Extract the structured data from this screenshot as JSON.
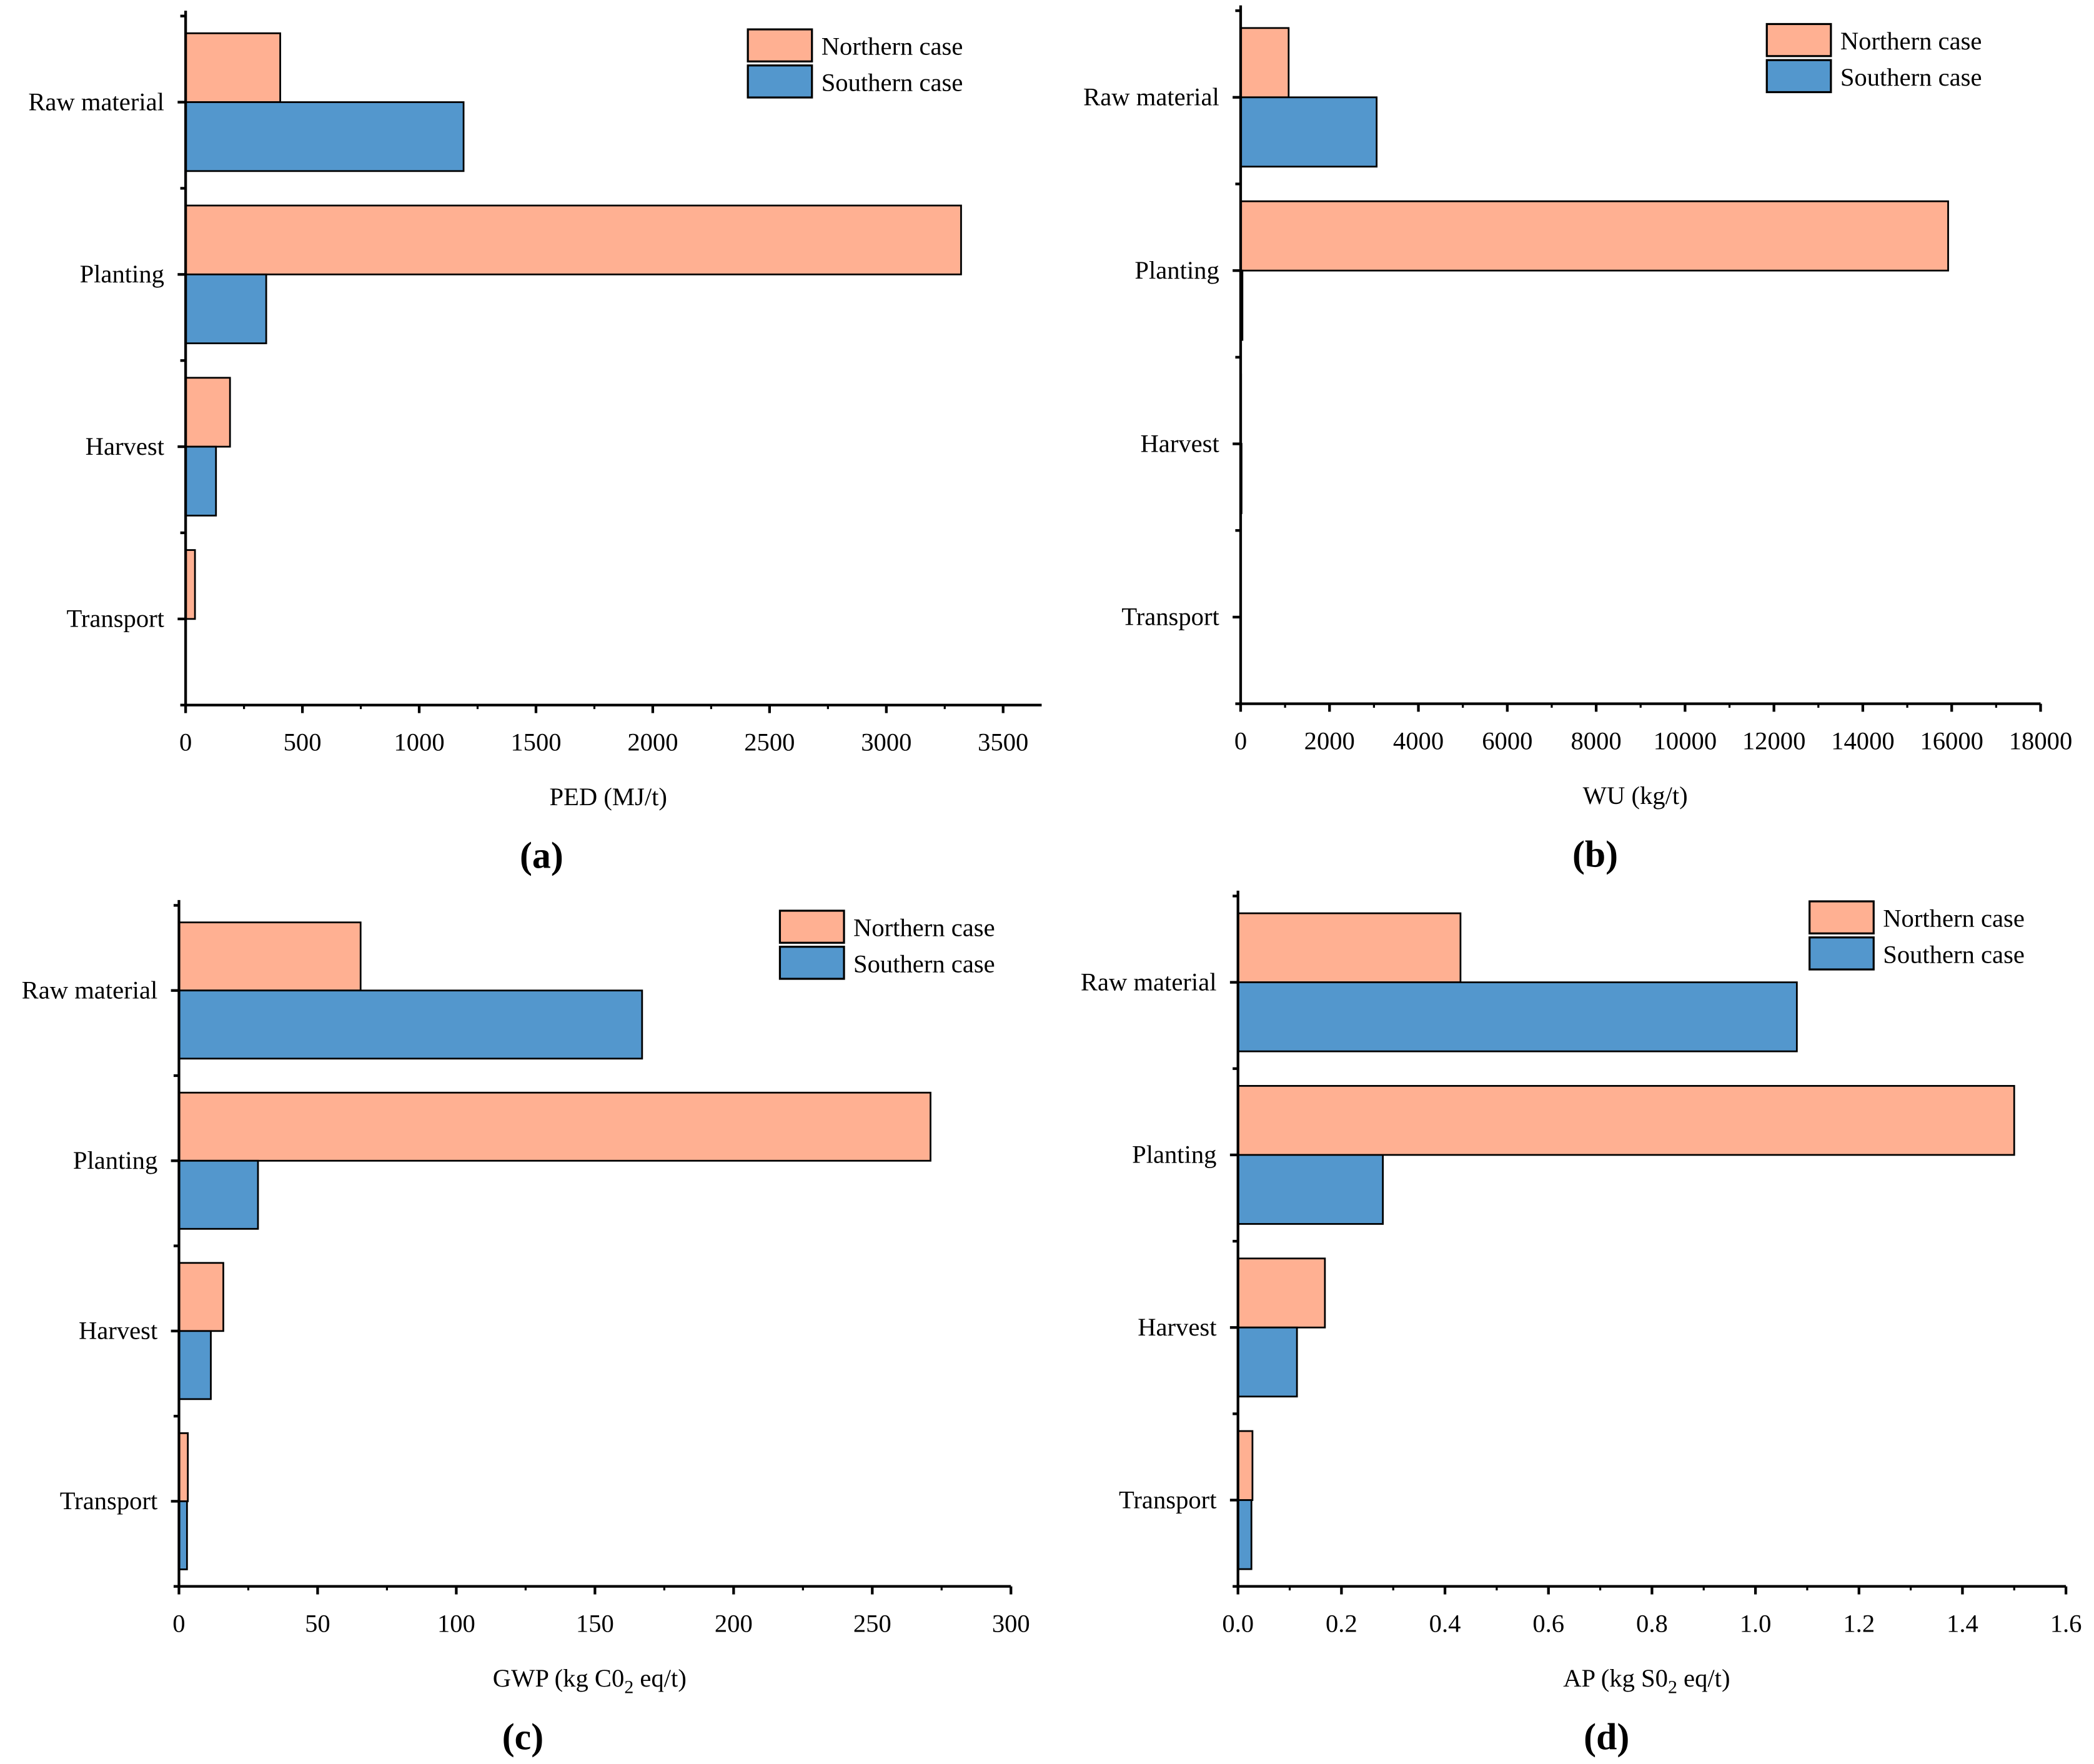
{
  "colors": {
    "northern": "#FFB092",
    "southern": "#5397CD",
    "axis": "#000000"
  },
  "chart_data": [
    {
      "type": "bar",
      "orientation": "horizontal",
      "panel": "(a)",
      "categories": [
        "Raw material",
        "Planting",
        "Harvest",
        "Transport"
      ],
      "xlabel": {
        "prefix": "PED (MJ/t)",
        "sub": "",
        "suffix": ""
      },
      "xlim": [
        0,
        3665
      ],
      "xticks": [
        0,
        500,
        1000,
        1500,
        2000,
        2500,
        3000,
        3500
      ],
      "legend": {
        "position": "top-right",
        "entries": [
          "Northern case",
          "Southern case"
        ]
      },
      "series": [
        {
          "name": "Northern case",
          "values": [
            405,
            3320,
            190,
            40
          ]
        },
        {
          "name": "Southern case",
          "values": [
            1190,
            345,
            130,
            0
          ]
        }
      ]
    },
    {
      "type": "bar",
      "orientation": "horizontal",
      "panel": "(b)",
      "categories": [
        "Raw material",
        "Planting",
        "Harvest",
        "Transport"
      ],
      "xlabel": {
        "prefix": "WU (kg/t)",
        "sub": "",
        "suffix": ""
      },
      "xlim": [
        0,
        18000
      ],
      "xticks": [
        0,
        2000,
        4000,
        6000,
        8000,
        10000,
        12000,
        14000,
        16000,
        18000
      ],
      "legend": {
        "position": "top-right",
        "entries": [
          "Northern case",
          "Southern case"
        ]
      },
      "series": [
        {
          "name": "Northern case",
          "values": [
            1080,
            15920,
            10,
            0
          ]
        },
        {
          "name": "Southern case",
          "values": [
            3060,
            40,
            20,
            0
          ]
        }
      ]
    },
    {
      "type": "bar",
      "orientation": "horizontal",
      "panel": "(c)",
      "categories": [
        "Raw material",
        "Planting",
        "Harvest",
        "Transport"
      ],
      "xlabel": {
        "prefix": "GWP (kg C0",
        "sub": "2",
        "suffix": " eq/t)"
      },
      "xlim": [
        0,
        300
      ],
      "xticks": [
        0,
        50,
        100,
        150,
        200,
        250,
        300
      ],
      "legend": {
        "position": "top-right",
        "entries": [
          "Northern case",
          "Southern case"
        ]
      },
      "series": [
        {
          "name": "Northern case",
          "values": [
            65.5,
            271,
            16,
            3.2
          ]
        },
        {
          "name": "Southern case",
          "values": [
            167,
            28.5,
            11.5,
            2.9
          ]
        }
      ]
    },
    {
      "type": "bar",
      "orientation": "horizontal",
      "panel": "(d)",
      "categories": [
        "Raw material",
        "Planting",
        "Harvest",
        "Transport"
      ],
      "xlabel": {
        "prefix": "AP (kg S0",
        "sub": "2",
        "suffix": " eq/t)"
      },
      "xlim": [
        0,
        1.6
      ],
      "xticks": [
        "0.0",
        "0.2",
        "0.4",
        "0.6",
        "0.8",
        "1.0",
        "1.2",
        "1.4",
        "1.6"
      ],
      "legend": {
        "position": "top-right",
        "entries": [
          "Northern case",
          "Southern case"
        ]
      },
      "series": [
        {
          "name": "Northern case",
          "values": [
            0.43,
            1.5,
            0.168,
            0.028
          ]
        },
        {
          "name": "Southern case",
          "values": [
            1.08,
            0.28,
            0.114,
            0.026
          ]
        }
      ]
    }
  ]
}
